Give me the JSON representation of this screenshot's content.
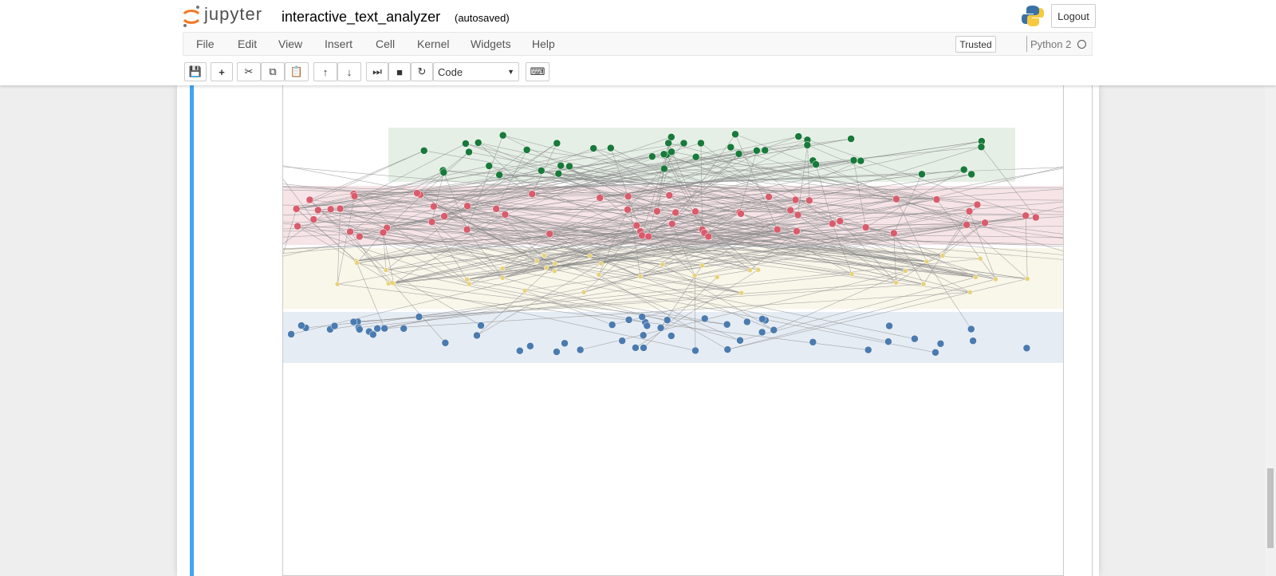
{
  "header": {
    "logo": "jupyter",
    "notebook_name": "interactive_text_analyzer",
    "save_status": "(autosaved)",
    "logout": "Logout"
  },
  "menu": {
    "items": [
      "File",
      "Edit",
      "View",
      "Insert",
      "Cell",
      "Kernel",
      "Widgets",
      "Help"
    ],
    "trusted": "Trusted",
    "kernel": "Python 2"
  },
  "toolbar": {
    "cell_type": "Code"
  }
}
